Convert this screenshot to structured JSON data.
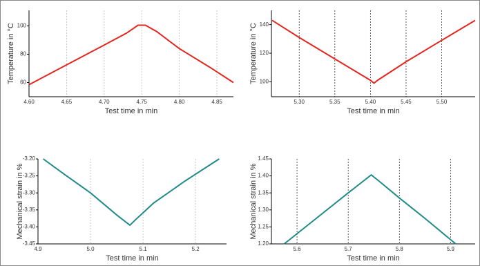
{
  "chart_data": [
    {
      "type": "line",
      "x_label": "Test time in min",
      "y_label": "Temperature in °C",
      "xlim": [
        4.6,
        4.872
      ],
      "ylim": [
        50,
        111
      ],
      "xticks": [
        {
          "value": 4.6,
          "label": "4.60"
        },
        4.65,
        {
          "value": 4.7,
          "label": "4.70"
        },
        4.75,
        {
          "value": 4.8,
          "label": "4.80"
        },
        4.85
      ],
      "yticks": [
        60,
        80,
        100
      ],
      "grid": true,
      "grid_color": "#bbbbbb",
      "x": [
        4.6,
        4.65,
        4.7,
        4.73,
        4.745,
        4.755,
        4.77,
        4.8,
        4.84,
        4.872
      ],
      "series": [
        {
          "color": "#e3261f",
          "values": [
            58.5,
            72.5,
            86.5,
            95,
            100.5,
            100.5,
            96,
            84,
            71,
            60
          ]
        }
      ]
    },
    {
      "type": "line",
      "x_label": "Test time in min",
      "y_label": "Temperature in °C",
      "xlim": [
        5.261,
        5.547
      ],
      "ylim": [
        89.5,
        150
      ],
      "xticks": [
        {
          "value": 5.3,
          "label": "5.30"
        },
        5.35,
        {
          "value": 5.4,
          "label": "5.40"
        },
        5.45,
        {
          "value": 5.5,
          "label": "5.50"
        }
      ],
      "yticks": [
        100,
        120,
        140
      ],
      "grid": true,
      "grid_color": "#333333",
      "x": [
        5.262,
        5.3,
        5.35,
        5.4,
        5.405,
        5.41,
        5.45,
        5.5,
        5.547
      ],
      "series": [
        {
          "color": "#e3261f",
          "values": [
            143,
            131,
            116,
            101,
            99,
            101,
            114,
            129,
            143
          ]
        }
      ]
    },
    {
      "type": "line",
      "x_label": "Test time in min",
      "y_label": "Mechanical strain in %",
      "xlim": [
        4.9,
        5.259
      ],
      "ylim": [
        -3.45,
        -3.2
      ],
      "xticks": [
        4.9,
        {
          "value": 5,
          "label": "5.0"
        },
        5.1,
        5.2
      ],
      "yticks": [
        {
          "value": -3.45,
          "label": "-3.45"
        },
        {
          "value": -3.4,
          "label": "-3.40"
        },
        -3.35,
        {
          "value": -3.3,
          "label": "-3.30"
        },
        -3.25,
        {
          "value": -3.2,
          "label": "-3.20"
        }
      ],
      "grid": true,
      "grid_color": "#bbbbbb",
      "x": [
        4.91,
        4.95,
        5.0,
        5.05,
        5.075,
        5.085,
        5.12,
        5.18,
        5.245
      ],
      "series": [
        {
          "color": "#1f8a88",
          "values": [
            -3.2,
            -3.245,
            -3.3,
            -3.365,
            -3.395,
            -3.38,
            -3.33,
            -3.265,
            -3.2
          ]
        }
      ]
    },
    {
      "type": "line",
      "x_label": "Test time in min",
      "y_label": "Mechanical strain in %",
      "xlim": [
        5.55,
        5.948
      ],
      "ylim": [
        1.2,
        1.45
      ],
      "xticks": [
        5.6,
        5.7,
        5.8,
        5.9
      ],
      "yticks": [
        {
          "value": 1.2,
          "label": "1.20"
        },
        1.25,
        {
          "value": 1.3,
          "label": "1.30"
        },
        1.35,
        {
          "value": 1.4,
          "label": "1.40"
        },
        1.45
      ],
      "grid": true,
      "grid_color": "#333333",
      "x": [
        5.575,
        5.6,
        5.65,
        5.7,
        5.745,
        5.76,
        5.8,
        5.85,
        5.91
      ],
      "series": [
        {
          "color": "#1f8a88",
          "values": [
            1.2,
            1.23,
            1.29,
            1.35,
            1.403,
            1.385,
            1.335,
            1.275,
            1.2
          ]
        }
      ]
    }
  ]
}
